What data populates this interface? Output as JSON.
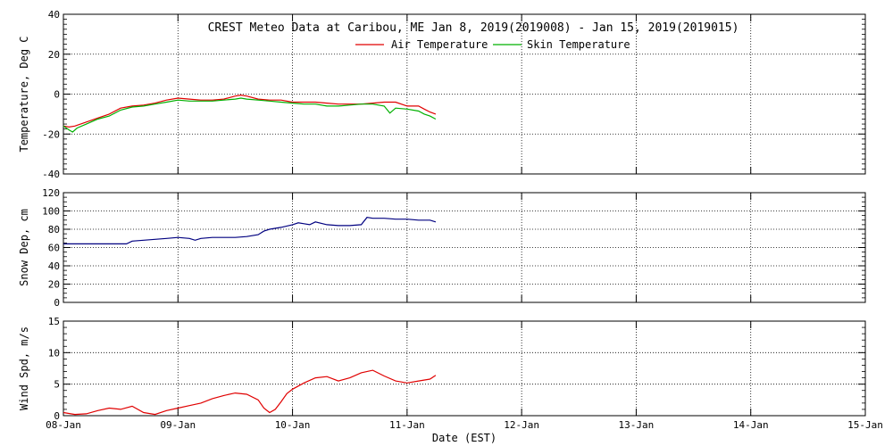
{
  "figure": {
    "title": "CREST Meteo Data at Caribou, ME   Jan  8, 2019(2019008) - Jan 15, 2019(2019015)",
    "xlabel": "Date (EST)"
  },
  "chart_data": [
    {
      "type": "line",
      "ylabel": "Temperature, Deg C",
      "ylim": [
        -40,
        40
      ],
      "yticks": [
        -40,
        -20,
        0,
        20,
        40
      ],
      "xlim": [
        0,
        7
      ],
      "xticks": [
        0,
        1,
        2,
        3,
        4,
        5,
        6,
        7
      ],
      "xtick_labels": [
        "08-Jan",
        "09-Jan",
        "10-Jan",
        "11-Jan",
        "12-Jan",
        "13-Jan",
        "14-Jan",
        "15-Jan"
      ],
      "grid": true,
      "legend_position": "top-center",
      "series": [
        {
          "name": "Air Temperature",
          "color": "#e00000",
          "x": [
            0,
            0.05,
            0.1,
            0.2,
            0.3,
            0.4,
            0.5,
            0.6,
            0.7,
            0.8,
            0.9,
            1.0,
            1.1,
            1.2,
            1.3,
            1.4,
            1.5,
            1.55,
            1.6,
            1.7,
            1.8,
            1.9,
            2.0,
            2.1,
            2.2,
            2.3,
            2.4,
            2.5,
            2.6,
            2.7,
            2.8,
            2.9,
            3.0,
            3.1,
            3.15,
            3.2,
            3.25
          ],
          "y": [
            -16,
            -16.5,
            -16,
            -14,
            -12,
            -10,
            -7,
            -6,
            -5.5,
            -4.5,
            -3,
            -2,
            -2.5,
            -3,
            -3,
            -2.5,
            -1,
            -0.5,
            -1,
            -2.5,
            -3,
            -3,
            -4,
            -4,
            -4,
            -4.5,
            -5,
            -5,
            -5,
            -4.5,
            -4,
            -4,
            -6,
            -6,
            -7.5,
            -9,
            -10
          ]
        },
        {
          "name": "Skin Temperature",
          "color": "#00b000",
          "x": [
            0,
            0.05,
            0.08,
            0.12,
            0.2,
            0.3,
            0.4,
            0.5,
            0.6,
            0.7,
            0.8,
            0.9,
            1.0,
            1.1,
            1.2,
            1.3,
            1.4,
            1.5,
            1.55,
            1.6,
            1.7,
            1.8,
            1.9,
            2.0,
            2.1,
            2.2,
            2.3,
            2.4,
            2.5,
            2.6,
            2.7,
            2.8,
            2.85,
            2.9,
            3.0,
            3.1,
            3.15,
            3.2,
            3.25
          ],
          "y": [
            -16,
            -18,
            -19,
            -17,
            -15,
            -12.5,
            -11,
            -8,
            -6.5,
            -6,
            -5,
            -4,
            -3,
            -3.5,
            -3.5,
            -3.5,
            -3,
            -2.5,
            -2,
            -2.5,
            -3,
            -3.5,
            -4,
            -4.5,
            -5,
            -5,
            -6,
            -6,
            -5.5,
            -5,
            -5,
            -6,
            -9.5,
            -7,
            -7.5,
            -8.5,
            -10,
            -11,
            -12.5
          ]
        }
      ]
    },
    {
      "type": "line",
      "ylabel": "Snow Dep, cm",
      "ylim": [
        0,
        120
      ],
      "yticks": [
        0,
        20,
        40,
        60,
        80,
        100,
        120
      ],
      "xlim": [
        0,
        7
      ],
      "grid": true,
      "series": [
        {
          "name": "",
          "color": "#000080",
          "x": [
            0,
            0.2,
            0.4,
            0.5,
            0.55,
            0.6,
            0.7,
            0.8,
            0.9,
            1.0,
            1.1,
            1.15,
            1.2,
            1.3,
            1.4,
            1.5,
            1.6,
            1.7,
            1.75,
            1.8,
            1.9,
            2.0,
            2.05,
            2.1,
            2.15,
            2.2,
            2.3,
            2.4,
            2.5,
            2.6,
            2.65,
            2.7,
            2.8,
            2.9,
            3.0,
            3.1,
            3.2,
            3.25
          ],
          "y": [
            64,
            64,
            64,
            64,
            64,
            67,
            68,
            69,
            70,
            71,
            70,
            68,
            70,
            71,
            71,
            71,
            72,
            74,
            78,
            80,
            82,
            85,
            87,
            86,
            85,
            88,
            85,
            84,
            84,
            85,
            93,
            92,
            92,
            91,
            91,
            90,
            90,
            88
          ]
        }
      ]
    },
    {
      "type": "line",
      "ylabel": "Wind Spd, m/s",
      "ylim": [
        0,
        15
      ],
      "yticks": [
        0,
        5,
        10,
        15
      ],
      "xlim": [
        0,
        7
      ],
      "grid": true,
      "series": [
        {
          "name": "",
          "color": "#e00000",
          "x": [
            0,
            0.1,
            0.2,
            0.3,
            0.4,
            0.5,
            0.6,
            0.7,
            0.8,
            0.9,
            1.0,
            1.1,
            1.2,
            1.3,
            1.4,
            1.5,
            1.6,
            1.7,
            1.75,
            1.8,
            1.85,
            1.9,
            1.95,
            2.0,
            2.1,
            2.2,
            2.3,
            2.4,
            2.5,
            2.6,
            2.7,
            2.8,
            2.9,
            3.0,
            3.1,
            3.2,
            3.25
          ],
          "y": [
            0.5,
            0.2,
            0.3,
            0.8,
            1.2,
            1.0,
            1.5,
            0.5,
            0.2,
            0.8,
            1.2,
            1.6,
            2.0,
            2.7,
            3.2,
            3.6,
            3.4,
            2.5,
            1.2,
            0.5,
            1.0,
            2.2,
            3.5,
            4.2,
            5.2,
            6.0,
            6.2,
            5.5,
            6.0,
            6.8,
            7.2,
            6.3,
            5.5,
            5.2,
            5.5,
            5.8,
            6.4
          ]
        }
      ]
    }
  ]
}
